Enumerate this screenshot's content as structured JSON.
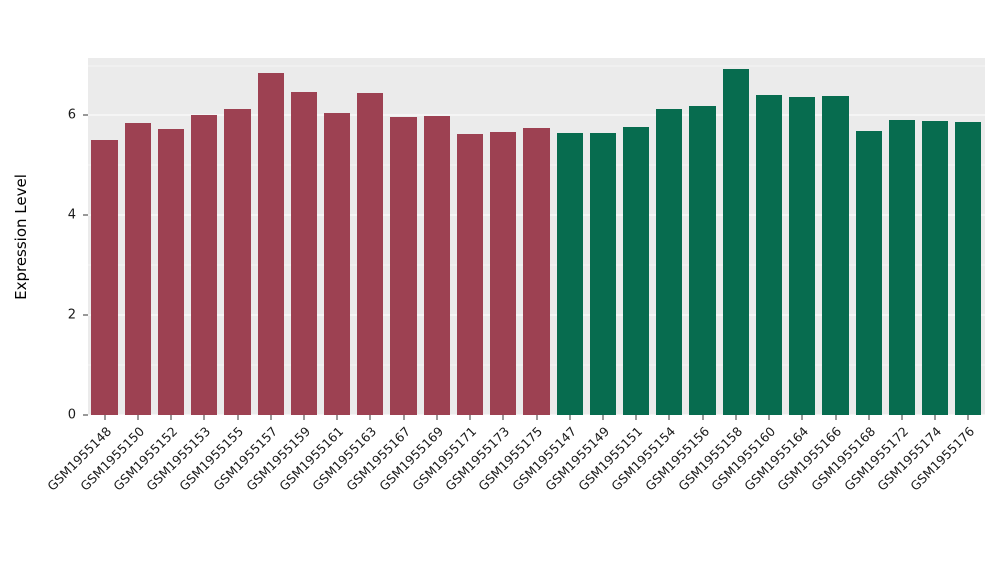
{
  "chart_data": {
    "type": "bar",
    "title": "",
    "xlabel": "",
    "ylabel": "Expression Level",
    "ylim": [
      0,
      7.15
    ],
    "yticks": [
      0,
      2,
      4,
      6
    ],
    "yticks_minor": [
      1,
      3,
      5,
      7
    ],
    "grid": true,
    "legend": "none",
    "panel_background": "#ebebeb",
    "groups": [
      {
        "name": "group-1",
        "color": "#9d4152"
      },
      {
        "name": "group-2",
        "color": "#076c4f"
      }
    ],
    "bars": [
      {
        "label": "GSM1955148",
        "value": 5.5,
        "group": 0
      },
      {
        "label": "GSM1955150",
        "value": 5.85,
        "group": 0
      },
      {
        "label": "GSM1955152",
        "value": 5.72,
        "group": 0
      },
      {
        "label": "GSM1955153",
        "value": 6.01,
        "group": 0
      },
      {
        "label": "GSM1955155",
        "value": 6.13,
        "group": 0
      },
      {
        "label": "GSM1955157",
        "value": 6.85,
        "group": 0
      },
      {
        "label": "GSM1955159",
        "value": 6.46,
        "group": 0
      },
      {
        "label": "GSM1955161",
        "value": 6.05,
        "group": 0
      },
      {
        "label": "GSM1955163",
        "value": 6.45,
        "group": 0
      },
      {
        "label": "GSM1955167",
        "value": 5.97,
        "group": 0
      },
      {
        "label": "GSM1955169",
        "value": 5.99,
        "group": 0
      },
      {
        "label": "GSM1955171",
        "value": 5.62,
        "group": 0
      },
      {
        "label": "GSM1955173",
        "value": 5.66,
        "group": 0
      },
      {
        "label": "GSM1955175",
        "value": 5.75,
        "group": 0
      },
      {
        "label": "GSM1955147",
        "value": 5.64,
        "group": 1
      },
      {
        "label": "GSM1955149",
        "value": 5.64,
        "group": 1
      },
      {
        "label": "GSM1955151",
        "value": 5.77,
        "group": 1
      },
      {
        "label": "GSM1955154",
        "value": 6.13,
        "group": 1
      },
      {
        "label": "GSM1955156",
        "value": 6.18,
        "group": 1
      },
      {
        "label": "GSM1955158",
        "value": 6.92,
        "group": 1
      },
      {
        "label": "GSM1955160",
        "value": 6.41,
        "group": 1
      },
      {
        "label": "GSM1955164",
        "value": 6.36,
        "group": 1
      },
      {
        "label": "GSM1955166",
        "value": 6.39,
        "group": 1
      },
      {
        "label": "GSM1955168",
        "value": 5.69,
        "group": 1
      },
      {
        "label": "GSM1955172",
        "value": 5.91,
        "group": 1
      },
      {
        "label": "GSM1955174",
        "value": 5.88,
        "group": 1
      },
      {
        "label": "GSM1955176",
        "value": 5.86,
        "group": 1
      }
    ]
  }
}
